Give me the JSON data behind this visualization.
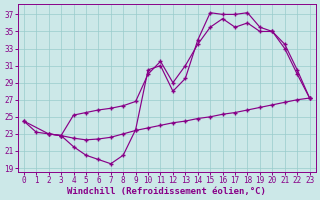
{
  "bg_color": "#cce8e8",
  "grid_color": "#99cccc",
  "line_color": "#880088",
  "marker": "+",
  "markersize": 3.5,
  "markeredgewidth": 1.0,
  "linewidth": 0.85,
  "xlabel": "Windchill (Refroidissement éolien,°C)",
  "xlabel_fontsize": 6.5,
  "tick_fontsize": 5.5,
  "xlim": [
    -0.5,
    23.5
  ],
  "ylim": [
    18.5,
    38.2
  ],
  "yticks": [
    19,
    21,
    23,
    25,
    27,
    29,
    31,
    33,
    35,
    37
  ],
  "xticks": [
    0,
    1,
    2,
    3,
    4,
    5,
    6,
    7,
    8,
    9,
    10,
    11,
    12,
    13,
    14,
    15,
    16,
    17,
    18,
    19,
    20,
    21,
    22,
    23
  ],
  "lines": [
    {
      "x": [
        0,
        1,
        2,
        3,
        4,
        5,
        6,
        7,
        8,
        9,
        10,
        11,
        12,
        13,
        14,
        15,
        16,
        17,
        18,
        19,
        20,
        21,
        22,
        23
      ],
      "y": [
        24.5,
        23.2,
        23.0,
        22.8,
        22.5,
        22.3,
        22.4,
        22.6,
        23.0,
        23.4,
        23.7,
        24.0,
        24.3,
        24.5,
        24.8,
        25.0,
        25.3,
        25.5,
        25.8,
        26.1,
        26.4,
        26.7,
        27.0,
        27.2
      ]
    },
    {
      "x": [
        0,
        2,
        3,
        4,
        5,
        6,
        7,
        8,
        9,
        10,
        11,
        12,
        13,
        14,
        15,
        16,
        17,
        18,
        19,
        20,
        21,
        22,
        23
      ],
      "y": [
        24.5,
        23.0,
        22.8,
        21.5,
        20.5,
        20.0,
        19.5,
        20.5,
        23.5,
        30.5,
        31.0,
        28.0,
        29.5,
        34.0,
        37.2,
        37.0,
        37.0,
        37.2,
        35.5,
        35.0,
        33.0,
        30.0,
        27.2
      ]
    },
    {
      "x": [
        2,
        3,
        4,
        5,
        6,
        7,
        8,
        9,
        10,
        11,
        12,
        13,
        14,
        15,
        16,
        17,
        18,
        19,
        20,
        21,
        22,
        23
      ],
      "y": [
        23.0,
        22.8,
        25.2,
        25.5,
        25.8,
        26.0,
        26.3,
        26.8,
        30.0,
        31.5,
        29.0,
        31.0,
        33.5,
        35.5,
        36.5,
        35.5,
        36.0,
        35.0,
        35.0,
        33.5,
        30.5,
        27.2
      ]
    }
  ]
}
